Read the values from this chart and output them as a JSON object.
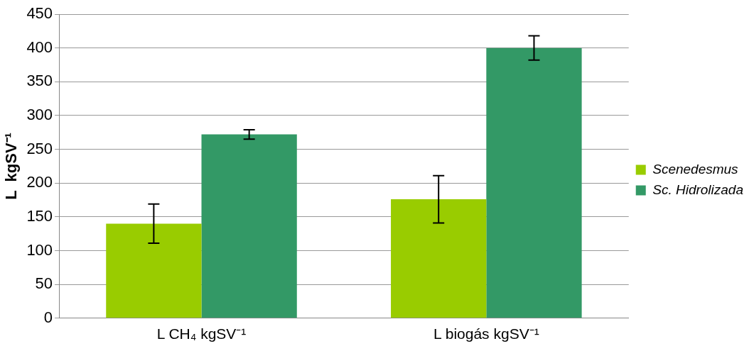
{
  "chart_data": {
    "type": "bar",
    "ylabel": "L  kgSV⁻¹",
    "categories": [
      "L CH₄ kgSV⁻¹",
      "L biogás kgSV⁻¹"
    ],
    "series": [
      {
        "name": "Scenedesmus",
        "color": "#99cc00",
        "values": [
          140,
          176
        ],
        "errors": [
          29,
          35
        ]
      },
      {
        "name": "Sc. Hidrolizada",
        "color": "#339966",
        "values": [
          272,
          400
        ],
        "errors": [
          7,
          18
        ]
      }
    ],
    "ylim": [
      0,
      450
    ],
    "yticks": [
      0,
      50,
      100,
      150,
      200,
      250,
      300,
      350,
      400,
      450
    ],
    "grid": "y",
    "legend": "right"
  }
}
